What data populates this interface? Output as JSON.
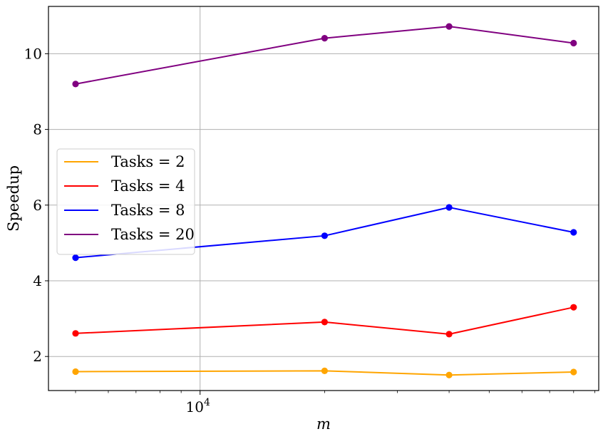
{
  "chart_data": {
    "type": "line",
    "xlabel": "m",
    "ylabel": "Speedup",
    "x_scale": "log",
    "x": [
      5000,
      20000,
      40000,
      80000
    ],
    "xlim": [
      4300,
      92000
    ],
    "ylim": [
      1.1,
      11.25
    ],
    "x_ticks": [
      {
        "value": 10000,
        "base": "10",
        "exp": "4"
      }
    ],
    "y_ticks": [
      2,
      4,
      6,
      8,
      10
    ],
    "grid": true,
    "legend_position": "center-left",
    "series": [
      {
        "name": "Tasks = 2",
        "color": "#FFA500",
        "values": [
          1.6,
          1.62,
          1.51,
          1.59
        ]
      },
      {
        "name": "Tasks = 4",
        "color": "#FF0000",
        "values": [
          2.61,
          2.91,
          2.59,
          3.3
        ]
      },
      {
        "name": "Tasks = 8",
        "color": "#0000FF",
        "values": [
          4.61,
          5.19,
          5.94,
          5.28
        ]
      },
      {
        "name": "Tasks = 20",
        "color": "#800080",
        "values": [
          9.2,
          10.41,
          10.72,
          10.28
        ]
      }
    ]
  }
}
